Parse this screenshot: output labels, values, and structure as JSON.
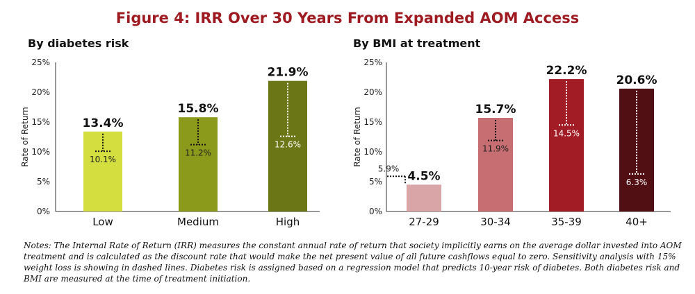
{
  "figure": {
    "title": "Figure 4: IRR Over 30 Years From Expanded AOM Access",
    "notes": "Notes: The Internal Rate of Return (IRR) measures the constant annual rate of return that society implicitly earns on the average dollar invested into AOM treatment and is calculated as the discount rate that would make the net present value of all future cashflows equal to zero. Sensitivity analysis with 15% weight loss is showing in dashed lines. Diabetes risk is assigned based on a regression model that predicts 10-year risk of diabetes. Both diabetes risk and BMI are measured at the time of treatment initiation."
  },
  "chart_data": [
    {
      "type": "bar",
      "title": "By diabetes risk",
      "ylabel": "Rate of Return",
      "xlabel": "",
      "ylim": [
        0,
        25
      ],
      "yticks": [
        "0%",
        "5%",
        "10%",
        "15%",
        "20%",
        "25%"
      ],
      "categories": [
        "Low",
        "Medium",
        "High"
      ],
      "values": [
        13.4,
        15.8,
        21.9
      ],
      "value_labels": [
        "13.4%",
        "15.8%",
        "21.9%"
      ],
      "sensitivity_values": [
        10.1,
        11.2,
        12.6
      ],
      "sensitivity_labels": [
        "10.1%",
        "11.2%",
        "12.6%"
      ],
      "colors": [
        "#d4df3f",
        "#8c9a1c",
        "#6b7716"
      ],
      "grid": false,
      "legend": "none"
    },
    {
      "type": "bar",
      "title": "By BMI at treatment",
      "ylabel": "Rate of Return",
      "xlabel": "",
      "ylim": [
        0,
        25
      ],
      "yticks": [
        "0%",
        "5%",
        "10%",
        "15%",
        "20%",
        "25%"
      ],
      "categories": [
        "27-29",
        "30-34",
        "35-39",
        "40+"
      ],
      "values": [
        4.5,
        15.7,
        22.2,
        20.6
      ],
      "value_labels": [
        "4.5%",
        "15.7%",
        "22.2%",
        "20.6%"
      ],
      "sensitivity_values": [
        5.9,
        11.9,
        14.5,
        6.3
      ],
      "sensitivity_labels": [
        "5.9%",
        "11.9%",
        "14.5%",
        "6.3%"
      ],
      "colors": [
        "#d9a5a7",
        "#c76e72",
        "#a11c24",
        "#520f13"
      ],
      "grid": false,
      "legend": "none"
    }
  ]
}
